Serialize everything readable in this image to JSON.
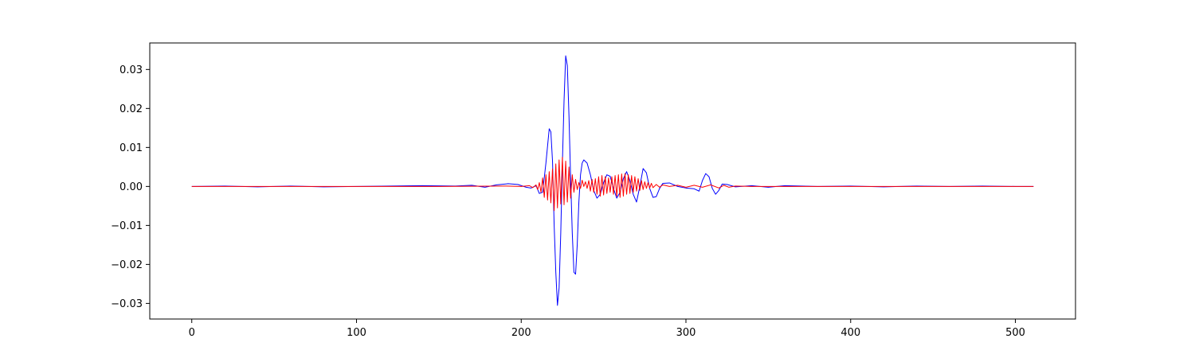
{
  "chart_data": {
    "type": "line",
    "title": "",
    "xlabel": "",
    "ylabel": "",
    "xlim": [
      -25.5,
      536.5
    ],
    "ylim": [
      -0.034,
      0.0368
    ],
    "grid": false,
    "legend": "none",
    "x_ticks": [
      0,
      100,
      200,
      300,
      400,
      500
    ],
    "x_tick_labels": [
      "0",
      "100",
      "200",
      "300",
      "400",
      "500"
    ],
    "y_ticks": [
      -0.03,
      -0.02,
      -0.01,
      0.0,
      0.01,
      0.02,
      0.03
    ],
    "y_tick_labels": [
      "−0.03",
      "−0.02",
      "−0.01",
      "0.00",
      "0.01",
      "0.02",
      "0.03"
    ],
    "x_range": [
      0,
      511
    ],
    "series": [
      {
        "color": "#0000ff",
        "points": [
          [
            0,
            0.0
          ],
          [
            20,
            0.0001
          ],
          [
            40,
            -0.0001
          ],
          [
            60,
            0.0001
          ],
          [
            80,
            -0.0001
          ],
          [
            100,
            0.0
          ],
          [
            120,
            0.0001
          ],
          [
            140,
            0.0002
          ],
          [
            160,
            0.0001
          ],
          [
            170,
            0.0003
          ],
          [
            178,
            -0.0002
          ],
          [
            185,
            0.0004
          ],
          [
            192,
            0.0007
          ],
          [
            198,
            0.0005
          ],
          [
            203,
            -0.0002
          ],
          [
            206,
            -0.0004
          ],
          [
            209,
            0.0002
          ],
          [
            211,
            -0.0018
          ],
          [
            213,
            -0.0015
          ],
          [
            215,
            0.006
          ],
          [
            217,
            0.0148
          ],
          [
            218,
            0.014
          ],
          [
            219,
            0.0065
          ],
          [
            220,
            -0.01
          ],
          [
            221,
            -0.022
          ],
          [
            222,
            -0.0305
          ],
          [
            223,
            -0.026
          ],
          [
            224,
            -0.012
          ],
          [
            225,
            0.006
          ],
          [
            226,
            0.022
          ],
          [
            227,
            0.0335
          ],
          [
            228,
            0.031
          ],
          [
            229,
            0.018
          ],
          [
            230,
            0.002
          ],
          [
            231,
            -0.012
          ],
          [
            232,
            -0.022
          ],
          [
            233,
            -0.0225
          ],
          [
            234,
            -0.015
          ],
          [
            235,
            -0.004
          ],
          [
            236,
            0.003
          ],
          [
            237,
            0.006
          ],
          [
            238,
            0.0068
          ],
          [
            240,
            0.006
          ],
          [
            242,
            0.003
          ],
          [
            244,
            -0.001
          ],
          [
            246,
            -0.003
          ],
          [
            248,
            -0.002
          ],
          [
            250,
            0.001
          ],
          [
            252,
            0.003
          ],
          [
            254,
            0.0026
          ],
          [
            256,
            -0.0005
          ],
          [
            258,
            -0.003
          ],
          [
            260,
            -0.0015
          ],
          [
            262,
            0.002
          ],
          [
            264,
            0.0038
          ],
          [
            266,
            0.0015
          ],
          [
            268,
            -0.002
          ],
          [
            270,
            -0.004
          ],
          [
            272,
            0.0
          ],
          [
            274,
            0.0046
          ],
          [
            276,
            0.0035
          ],
          [
            278,
            -0.0005
          ],
          [
            280,
            -0.0028
          ],
          [
            282,
            -0.0026
          ],
          [
            284,
            -0.0005
          ],
          [
            286,
            0.0008
          ],
          [
            290,
            0.0009
          ],
          [
            295,
            0.0
          ],
          [
            300,
            -0.0004
          ],
          [
            305,
            -0.0006
          ],
          [
            308,
            -0.0012
          ],
          [
            310,
            0.0015
          ],
          [
            312,
            0.0033
          ],
          [
            314,
            0.0025
          ],
          [
            316,
            -0.0005
          ],
          [
            318,
            -0.002
          ],
          [
            320,
            -0.001
          ],
          [
            322,
            0.0006
          ],
          [
            325,
            0.0005
          ],
          [
            330,
            -0.0001
          ],
          [
            340,
            0.0002
          ],
          [
            350,
            -0.0002
          ],
          [
            360,
            0.0002
          ],
          [
            380,
            0.0
          ],
          [
            400,
            0.0001
          ],
          [
            420,
            -0.0001
          ],
          [
            440,
            0.0001
          ],
          [
            460,
            0.0
          ],
          [
            480,
            0.0001
          ],
          [
            500,
            0.0
          ],
          [
            511,
            0.0
          ]
        ]
      },
      {
        "color": "#ff0000",
        "points": [
          [
            0,
            0.0
          ],
          [
            50,
            0.0
          ],
          [
            100,
            0.0
          ],
          [
            150,
            0.0
          ],
          [
            190,
            0.0001
          ],
          [
            200,
            0.0
          ],
          [
            205,
            0.0002
          ],
          [
            207,
            -0.0003
          ],
          [
            209,
            0.0004
          ],
          [
            210,
            -0.0008
          ],
          [
            211,
            0.001
          ],
          [
            212,
            -0.0015
          ],
          [
            213,
            0.0022
          ],
          [
            214,
            -0.0028
          ],
          [
            215,
            0.003
          ],
          [
            216,
            -0.0035
          ],
          [
            217,
            0.0038
          ],
          [
            218,
            -0.0042
          ],
          [
            219,
            0.0045
          ],
          [
            220,
            -0.0062
          ],
          [
            221,
            0.0058
          ],
          [
            222,
            -0.0055
          ],
          [
            223,
            0.0068
          ],
          [
            224,
            -0.0045
          ],
          [
            225,
            0.0075
          ],
          [
            226,
            -0.0047
          ],
          [
            227,
            0.0065
          ],
          [
            228,
            -0.004
          ],
          [
            229,
            0.005
          ],
          [
            230,
            -0.003
          ],
          [
            231,
            0.003
          ],
          [
            232,
            -0.0015
          ],
          [
            233,
            0.0018
          ],
          [
            234,
            -0.0008
          ],
          [
            235,
            0.001
          ],
          [
            236,
            -0.0005
          ],
          [
            237,
            0.0016
          ],
          [
            238,
            0.0
          ],
          [
            239,
            0.0012
          ],
          [
            240,
            -0.0005
          ],
          [
            241,
            0.0015
          ],
          [
            242,
            -0.0012
          ],
          [
            243,
            0.0018
          ],
          [
            244,
            -0.0015
          ],
          [
            245,
            0.002
          ],
          [
            246,
            -0.002
          ],
          [
            247,
            0.0025
          ],
          [
            248,
            -0.0025
          ],
          [
            249,
            0.0028
          ],
          [
            250,
            -0.0022
          ],
          [
            251,
            0.0025
          ],
          [
            252,
            -0.0018
          ],
          [
            253,
            0.0022
          ],
          [
            254,
            -0.0015
          ],
          [
            255,
            0.0025
          ],
          [
            256,
            -0.002
          ],
          [
            257,
            0.0028
          ],
          [
            258,
            -0.0025
          ],
          [
            259,
            0.003
          ],
          [
            260,
            -0.0028
          ],
          [
            261,
            0.0032
          ],
          [
            262,
            -0.0025
          ],
          [
            263,
            0.0033
          ],
          [
            264,
            -0.002
          ],
          [
            265,
            0.003
          ],
          [
            266,
            -0.0018
          ],
          [
            267,
            0.0028
          ],
          [
            268,
            -0.0015
          ],
          [
            269,
            0.0025
          ],
          [
            270,
            -0.0012
          ],
          [
            271,
            0.002
          ],
          [
            272,
            -0.001
          ],
          [
            273,
            0.0015
          ],
          [
            274,
            -0.0008
          ],
          [
            275,
            0.0012
          ],
          [
            276,
            -0.0005
          ],
          [
            277,
            0.001
          ],
          [
            278,
            -0.0004
          ],
          [
            279,
            0.0008
          ],
          [
            280,
            -0.0003
          ],
          [
            282,
            0.0005
          ],
          [
            284,
            -0.0002
          ],
          [
            286,
            0.0004
          ],
          [
            290,
            0.0
          ],
          [
            295,
            0.0003
          ],
          [
            300,
            -0.0002
          ],
          [
            305,
            0.0003
          ],
          [
            310,
            -0.0002
          ],
          [
            315,
            0.0004
          ],
          [
            320,
            -0.0004
          ],
          [
            323,
            0.0003
          ],
          [
            326,
            -0.0002
          ],
          [
            330,
            0.0001
          ],
          [
            340,
            0.0
          ],
          [
            360,
            0.0
          ],
          [
            400,
            0.0
          ],
          [
            450,
            0.0
          ],
          [
            511,
            0.0
          ]
        ]
      }
    ]
  }
}
